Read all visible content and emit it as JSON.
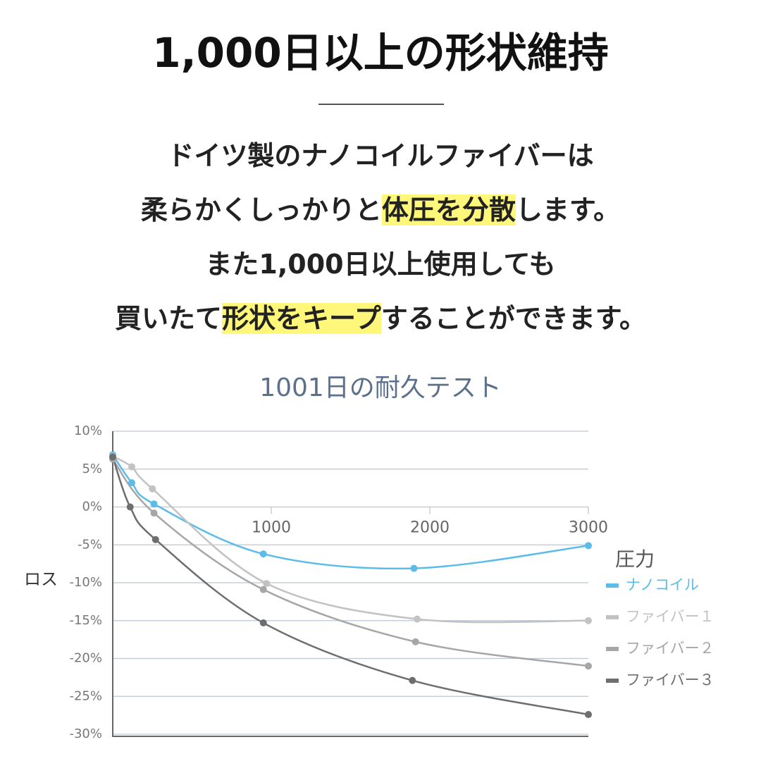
{
  "header": {
    "title": "1,000日以上の形状維持"
  },
  "body": {
    "lines": [
      [
        {
          "text": "ドイツ製のナノコイルファイバーは",
          "highlight": false
        }
      ],
      [
        {
          "text": "柔らかくしっかりと",
          "highlight": false
        },
        {
          "text": "体圧を分散",
          "highlight": true
        },
        {
          "text": "します。",
          "highlight": false
        }
      ],
      [
        {
          "text": "また1,000日以上使用しても",
          "highlight": false
        }
      ],
      [
        {
          "text": "買いたて",
          "highlight": false
        },
        {
          "text": "形状をキープ",
          "highlight": true
        },
        {
          "text": "することができます。",
          "highlight": false
        }
      ]
    ]
  },
  "chart_data": {
    "type": "line",
    "title": "1001日の耐久テスト",
    "y_label": "ロス",
    "legend_title": "圧力",
    "xlim": [
      0,
      3000
    ],
    "xticks": [
      1000,
      2000,
      3000
    ],
    "ylim": [
      -30,
      10
    ],
    "yticks": [
      {
        "value": -30,
        "label": "-30%"
      },
      {
        "value": -25,
        "label": "-25%"
      },
      {
        "value": -20,
        "label": "-20%"
      },
      {
        "value": -15,
        "label": "-15%"
      },
      {
        "value": -10,
        "label": "-10%"
      },
      {
        "value": -5,
        "label": "-5%"
      },
      {
        "value": 0,
        "label": "0%"
      },
      {
        "value": 5,
        "label": "5%"
      },
      {
        "value": 10,
        "label": "10%"
      }
    ],
    "grid": true,
    "smooth": true,
    "series": [
      {
        "name": "ナノコイル",
        "color": "#5bbcea",
        "x": [
          0,
          120,
          260,
          950,
          1900,
          3000
        ],
        "values": [
          6.9,
          3.2,
          0.4,
          -6.2,
          -8.1,
          -5.1
        ]
      },
      {
        "name": "ファイバー１",
        "color": "#c2c2c2",
        "x": [
          0,
          120,
          250,
          970,
          1920,
          3000
        ],
        "values": [
          6.7,
          5.3,
          2.4,
          -10.1,
          -14.8,
          -15.0
        ]
      },
      {
        "name": "ファイバー２",
        "color": "#a6a6a6",
        "x": [
          0,
          260,
          950,
          1910,
          3000
        ],
        "values": [
          6.3,
          -0.8,
          -10.9,
          -17.8,
          -21.0
        ]
      },
      {
        "name": "ファイバー３",
        "color": "#6e6e6e",
        "x": [
          0,
          110,
          270,
          950,
          1890,
          3000
        ],
        "values": [
          6.6,
          0,
          -4.3,
          -15.3,
          -22.9,
          -27.4
        ]
      }
    ]
  }
}
